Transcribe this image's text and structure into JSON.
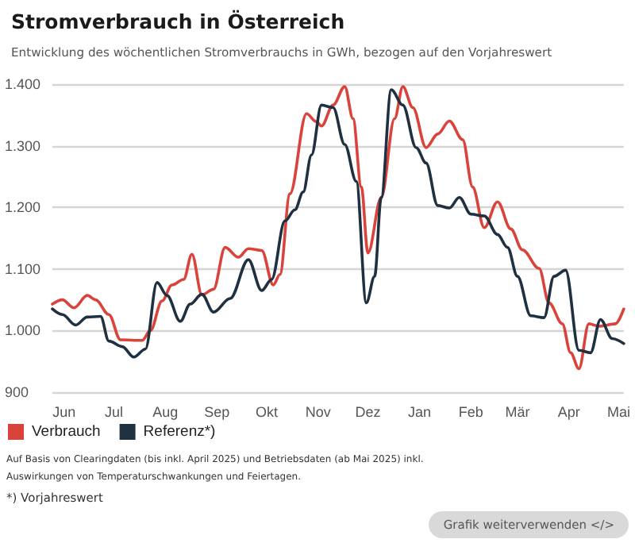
{
  "chart_data": {
    "type": "line",
    "title": "Stromverbrauch in Österreich",
    "subtitle": "Entwicklung des wöchentlichen Stromverbrauchs in GWh, bezogen auf den Vorjahreswert",
    "xlim": [
      "2024-05-25",
      "2025-05-04"
    ],
    "xticks": [
      {
        "value": "2024-06-01",
        "label": "Jun"
      },
      {
        "value": "2024-07-01",
        "label": "Jul"
      },
      {
        "value": "2024-08-01",
        "label": "Aug"
      },
      {
        "value": "2024-09-01",
        "label": "Sep"
      },
      {
        "value": "2024-10-01",
        "label": "Okt"
      },
      {
        "value": "2024-11-01",
        "label": "Nov"
      },
      {
        "value": "2024-12-01",
        "label": "Dez"
      },
      {
        "value": "2025-01-01",
        "label": "Jan"
      },
      {
        "value": "2025-02-01",
        "label": "Feb"
      },
      {
        "value": "2025-03-01",
        "label": "Mär"
      },
      {
        "value": "2025-04-01",
        "label": "Apr"
      },
      {
        "value": "2025-05-01",
        "label": "Mai"
      }
    ],
    "ylim": [
      900,
      1400
    ],
    "yticks": [
      {
        "value": 900,
        "label": "900"
      },
      {
        "value": 1000,
        "label": "1.000"
      },
      {
        "value": 1100,
        "label": "1.100"
      },
      {
        "value": 1200,
        "label": "1.200"
      },
      {
        "value": 1300,
        "label": "1.300"
      },
      {
        "value": 1400,
        "label": "1.400"
      }
    ],
    "grid": "y",
    "legend": "bottom left",
    "marker": "none",
    "line_style": "solid",
    "series": [
      {
        "name": "Verbrauch",
        "color": "#d9433b",
        "x": [
          "2024-05-25",
          "2024-05-31",
          "2024-06-07",
          "2024-06-15",
          "2024-06-20",
          "2024-06-28",
          "2024-07-05",
          "2024-07-18",
          "2024-07-23",
          "2024-07-30",
          "2024-08-05",
          "2024-08-12",
          "2024-08-17",
          "2024-08-23",
          "2024-08-30",
          "2024-09-06",
          "2024-09-14",
          "2024-09-20",
          "2024-09-28",
          "2024-10-05",
          "2024-10-09",
          "2024-10-15",
          "2024-10-25",
          "2024-10-31",
          "2024-11-03",
          "2024-11-10",
          "2024-11-17",
          "2024-11-22",
          "2024-11-27",
          "2024-12-01",
          "2024-12-09",
          "2024-12-17",
          "2024-12-22",
          "2024-12-28",
          "2025-01-05",
          "2025-01-12",
          "2025-01-19",
          "2025-01-27",
          "2025-02-02",
          "2025-02-09",
          "2025-02-17",
          "2025-02-25",
          "2025-03-04",
          "2025-03-14",
          "2025-03-20",
          "2025-03-28",
          "2025-04-02",
          "2025-04-07",
          "2025-04-13",
          "2025-04-19",
          "2025-04-29",
          "2025-05-04"
        ],
        "values": [
          1043,
          1050,
          1037,
          1057,
          1050,
          1026,
          985,
          984,
          1000,
          1048,
          1074,
          1083,
          1124,
          1058,
          1067,
          1135,
          1119,
          1133,
          1130,
          1074,
          1091,
          1222,
          1352,
          1339,
          1332,
          1366,
          1396,
          1344,
          1233,
          1126,
          1216,
          1344,
          1396,
          1362,
          1297,
          1319,
          1340,
          1310,
          1233,
          1167,
          1209,
          1165,
          1131,
          1101,
          1045,
          1011,
          964,
          938,
          1011,
          1007,
          1011,
          1035
        ]
      },
      {
        "name": "Referenz*)",
        "color": "#1f3040",
        "x": [
          "2024-05-25",
          "2024-05-31",
          "2024-06-08",
          "2024-06-15",
          "2024-06-23",
          "2024-06-28",
          "2024-07-06",
          "2024-07-13",
          "2024-07-20",
          "2024-07-27",
          "2024-08-02",
          "2024-08-10",
          "2024-08-16",
          "2024-08-23",
          "2024-08-30",
          "2024-09-09",
          "2024-09-20",
          "2024-09-28",
          "2024-10-04",
          "2024-10-12",
          "2024-10-18",
          "2024-10-23",
          "2024-10-28",
          "2024-11-03",
          "2024-11-10",
          "2024-11-17",
          "2024-11-24",
          "2024-11-30",
          "2024-12-05",
          "2024-12-09",
          "2024-12-15",
          "2024-12-22",
          "2024-12-30",
          "2025-01-05",
          "2025-01-12",
          "2025-01-19",
          "2025-01-25",
          "2025-02-01",
          "2025-02-09",
          "2025-02-17",
          "2025-02-23",
          "2025-03-01",
          "2025-03-09",
          "2025-03-17",
          "2025-03-23",
          "2025-03-30",
          "2025-04-07",
          "2025-04-14",
          "2025-04-20",
          "2025-04-27",
          "2025-05-04"
        ],
        "values": [
          1035,
          1026,
          1009,
          1022,
          1023,
          983,
          974,
          957,
          970,
          1078,
          1057,
          1015,
          1043,
          1059,
          1030,
          1052,
          1115,
          1065,
          1083,
          1178,
          1196,
          1225,
          1285,
          1366,
          1362,
          1302,
          1242,
          1045,
          1088,
          1216,
          1391,
          1366,
          1297,
          1272,
          1203,
          1199,
          1216,
          1189,
          1186,
          1156,
          1135,
          1088,
          1024,
          1021,
          1088,
          1098,
          968,
          964,
          1018,
          987,
          979
        ]
      }
    ],
    "annotations": [
      "Auf Basis von Clearingdaten (bis inkl. April 2025) und Betriebsdaten (ab Mai 2025) inkl. Auswirkungen von Temperaturschwankungen und Feiertagen.",
      "*) Vorjahreswert",
      "Grafik weiterverwenden </>"
    ]
  }
}
